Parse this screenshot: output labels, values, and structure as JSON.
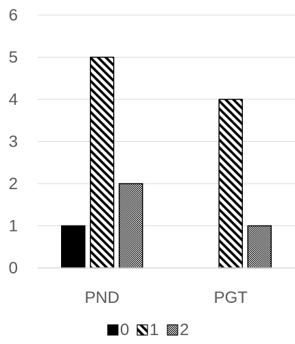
{
  "chart_data": {
    "type": "bar",
    "categories": [
      "PND",
      "PGT"
    ],
    "series": [
      {
        "name": "0",
        "values": [
          1,
          0
        ],
        "pattern": "solid"
      },
      {
        "name": "1",
        "values": [
          5,
          4
        ],
        "pattern": "diagonal-stripes"
      },
      {
        "name": "2",
        "values": [
          2,
          1
        ],
        "pattern": "dots"
      }
    ],
    "ylim": [
      0,
      6
    ],
    "yticks": [
      "0",
      "1",
      "2",
      "3",
      "4",
      "5",
      "6"
    ],
    "grid": true,
    "legend_position": "bottom",
    "colors": {
      "bar_fill": "#000000",
      "bar_stroke": "#000000",
      "gridline": "#d9d9d9",
      "axis_line": "#d9d9d9",
      "text": "#595959"
    }
  }
}
